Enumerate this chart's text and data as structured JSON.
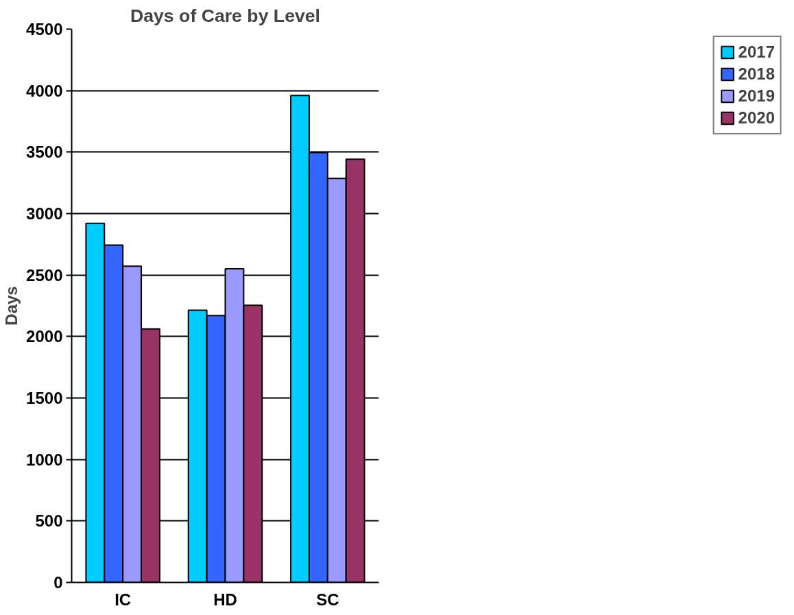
{
  "chart_data": {
    "type": "bar",
    "title": "Days of Care by Level",
    "ylabel": "Days",
    "categories": [
      "IC",
      "HD",
      "SC"
    ],
    "series": [
      {
        "name": "2017",
        "color": "#00ccff",
        "values": [
          2920,
          2214,
          3960
        ]
      },
      {
        "name": "2018",
        "color": "#3366ff",
        "values": [
          2743,
          2170,
          3496
        ]
      },
      {
        "name": "2019",
        "color": "#9999ff",
        "values": [
          2572,
          2551,
          3286
        ]
      },
      {
        "name": "2020",
        "color": "#993366",
        "values": [
          2062,
          2254,
          3442
        ]
      }
    ],
    "ylim": [
      0,
      4500
    ],
    "yticks": [
      0,
      500,
      1000,
      1500,
      2000,
      2500,
      3000,
      3500,
      4000,
      4500
    ],
    "grid": "y",
    "legend": "right"
  }
}
